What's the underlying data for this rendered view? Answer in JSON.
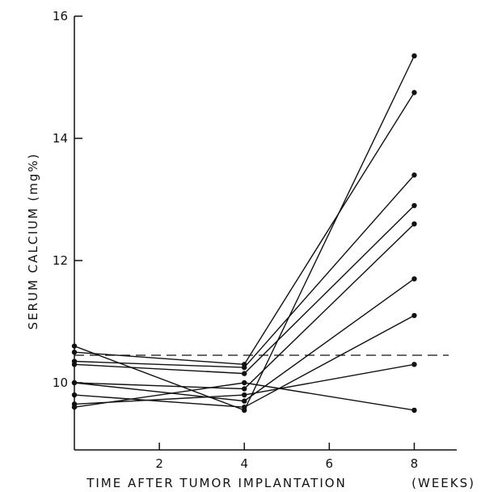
{
  "chart_data": {
    "type": "line",
    "xlabel": "TIME AFTER TUMOR IMPLANTATION",
    "xunit_label": "(WEEKS)",
    "ylabel": "SERUM CALCIUM (mg%)",
    "xlim": [
      0,
      9
    ],
    "ylim": [
      8.9,
      16
    ],
    "xticks": [
      2,
      4,
      6,
      8
    ],
    "yticks": [
      10,
      12,
      14,
      16
    ],
    "x": [
      0,
      4,
      8
    ],
    "series": [
      {
        "values": [
          10.6,
          9.55,
          15.35
        ]
      },
      {
        "values": [
          10.5,
          10.3,
          14.75
        ]
      },
      {
        "values": [
          10.35,
          10.25,
          13.4
        ]
      },
      {
        "values": [
          10.3,
          10.15,
          12.9
        ]
      },
      {
        "values": [
          10.0,
          9.9,
          12.6
        ]
      },
      {
        "values": [
          10.0,
          9.7,
          11.7
        ]
      },
      {
        "values": [
          9.8,
          9.6,
          11.1
        ]
      },
      {
        "values": [
          9.65,
          9.8,
          10.3
        ]
      },
      {
        "values": [
          9.6,
          10.0,
          9.55
        ]
      }
    ],
    "reference_line": {
      "y": 10.45,
      "style": "dashed"
    },
    "grid": false,
    "legend": "none",
    "colors": {
      "line": "#111111",
      "marker": "#111111"
    }
  }
}
